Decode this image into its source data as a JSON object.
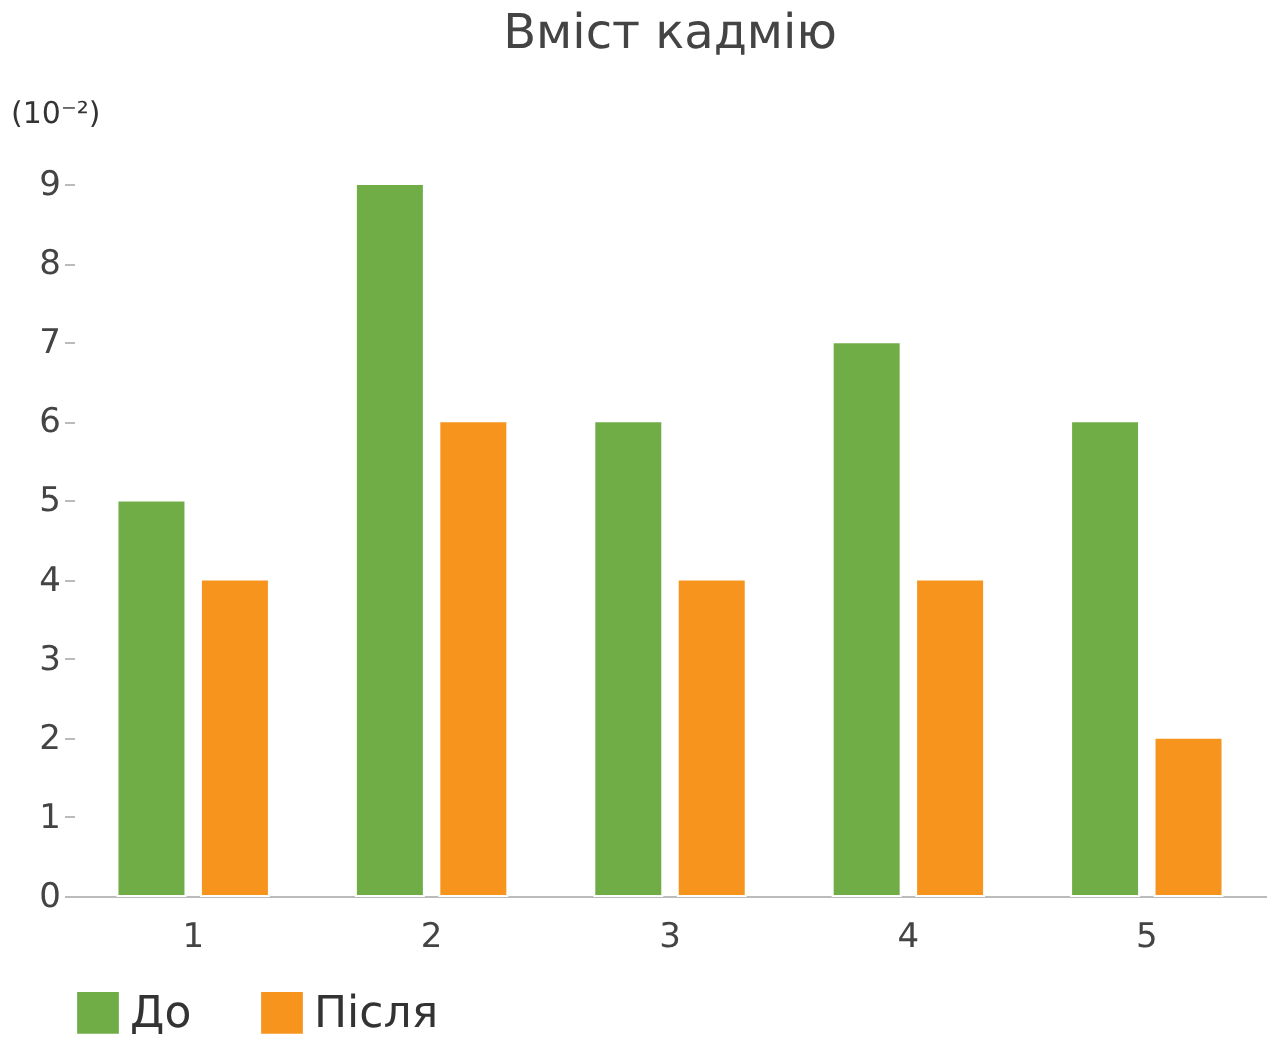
{
  "chart_data": {
    "type": "bar",
    "title": "Вміст кадмію",
    "ylabel": "(10⁻²)",
    "categories": [
      "1",
      "2",
      "3",
      "4",
      "5"
    ],
    "series": [
      {
        "name": "До",
        "color": "#70ad47",
        "values": [
          5,
          9,
          6,
          7,
          6
        ]
      },
      {
        "name": "Після",
        "color": "#f7941d",
        "values": [
          4,
          6,
          4,
          4,
          2
        ]
      }
    ],
    "ylim": [
      0,
      9
    ],
    "yticks": [
      0,
      1,
      2,
      3,
      4,
      5,
      6,
      7,
      8,
      9
    ],
    "grid": false,
    "legend": "bottom"
  }
}
